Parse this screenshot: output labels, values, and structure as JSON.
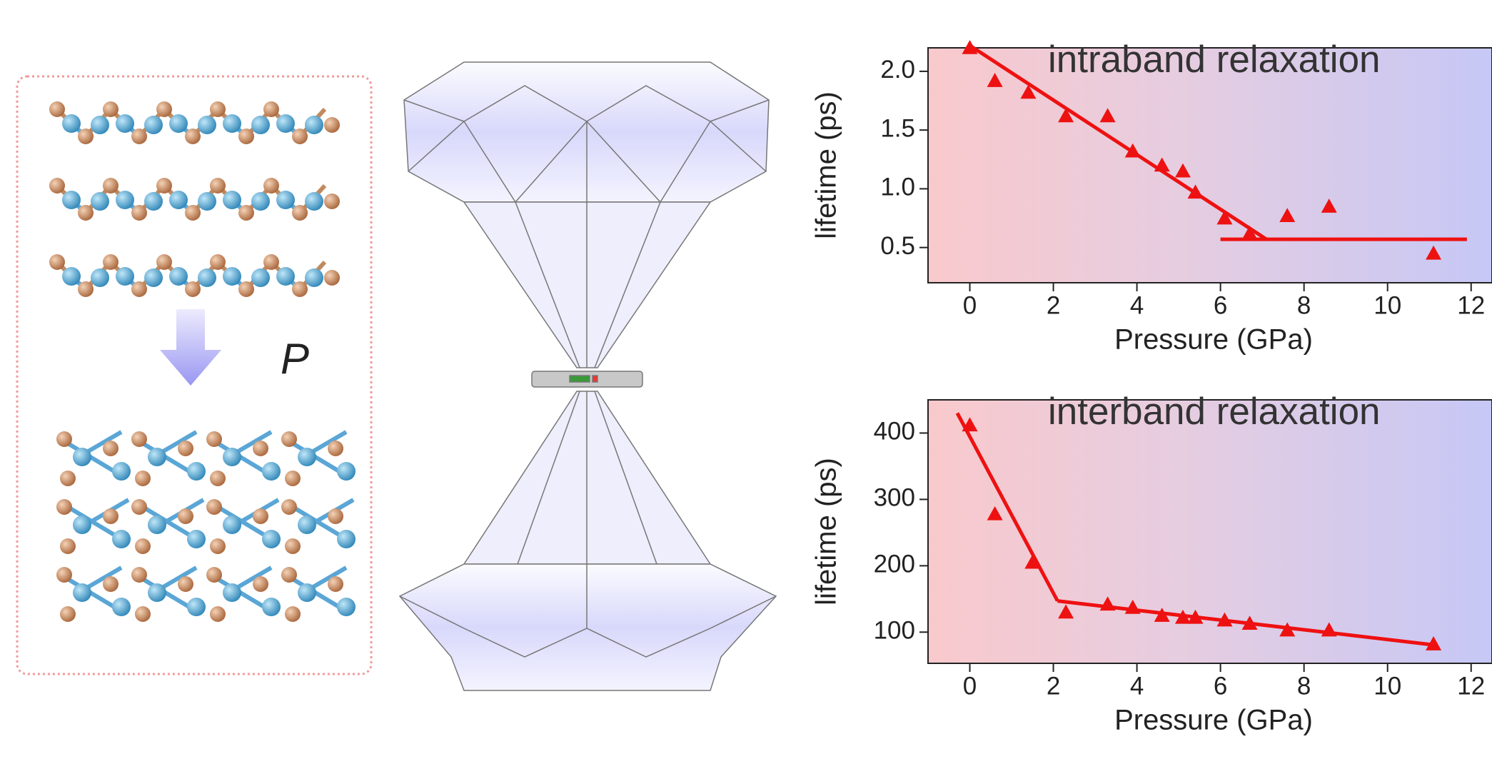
{
  "schematic": {
    "label": "P"
  },
  "chart_data": [
    {
      "type": "scatter",
      "annotation": "intraband relaxation",
      "x_label": "Pressure (GPa)",
      "y_label": "lifetime (ps)",
      "color": "#ee1111",
      "x": [
        0,
        0.6,
        1.4,
        2.3,
        3.3,
        3.9,
        4.6,
        5.1,
        5.4,
        6.1,
        6.7,
        7.6,
        8.6,
        11.1
      ],
      "values": [
        2.2,
        1.92,
        1.82,
        1.62,
        1.62,
        1.32,
        1.2,
        1.15,
        0.97,
        0.75,
        0.62,
        0.77,
        0.85,
        0.45
      ],
      "fit_lines": [
        {
          "x": [
            0,
            7.1
          ],
          "y": [
            2.22,
            0.57
          ]
        },
        {
          "x": [
            6,
            11.9
          ],
          "y": [
            0.57,
            0.57
          ]
        }
      ],
      "xlim": [
        -1,
        12.5
      ],
      "ylim": [
        0.2,
        2.2
      ],
      "xticks": [
        0,
        2,
        4,
        6,
        8,
        10,
        12
      ],
      "yticks": [
        0.5,
        {
          "value": 1,
          "label": "1.0"
        },
        1.5,
        {
          "value": 2,
          "label": "2.0"
        }
      ]
    },
    {
      "type": "scatter",
      "annotation": "interband relaxation",
      "x_label": "Pressure (GPa)",
      "y_label": "lifetime (ps)",
      "color": "#ee1111",
      "x": [
        0,
        0.6,
        1.5,
        2.3,
        3.3,
        3.9,
        4.6,
        5.1,
        5.4,
        6.1,
        6.7,
        7.6,
        8.6,
        11.1
      ],
      "values": [
        412,
        278,
        205,
        130,
        142,
        137,
        125,
        122,
        122,
        118,
        113,
        103,
        103,
        82
      ],
      "fit_lines": [
        {
          "x": [
            -0.3,
            2.1
          ],
          "y": [
            430,
            147
          ]
        },
        {
          "x": [
            2.1,
            11.2
          ],
          "y": [
            147,
            80
          ]
        }
      ],
      "xlim": [
        -1,
        12.5
      ],
      "ylim": [
        53,
        450
      ],
      "xticks": [
        0,
        2,
        4,
        6,
        8,
        10,
        12
      ],
      "yticks": [
        100,
        200,
        300,
        400
      ]
    }
  ]
}
